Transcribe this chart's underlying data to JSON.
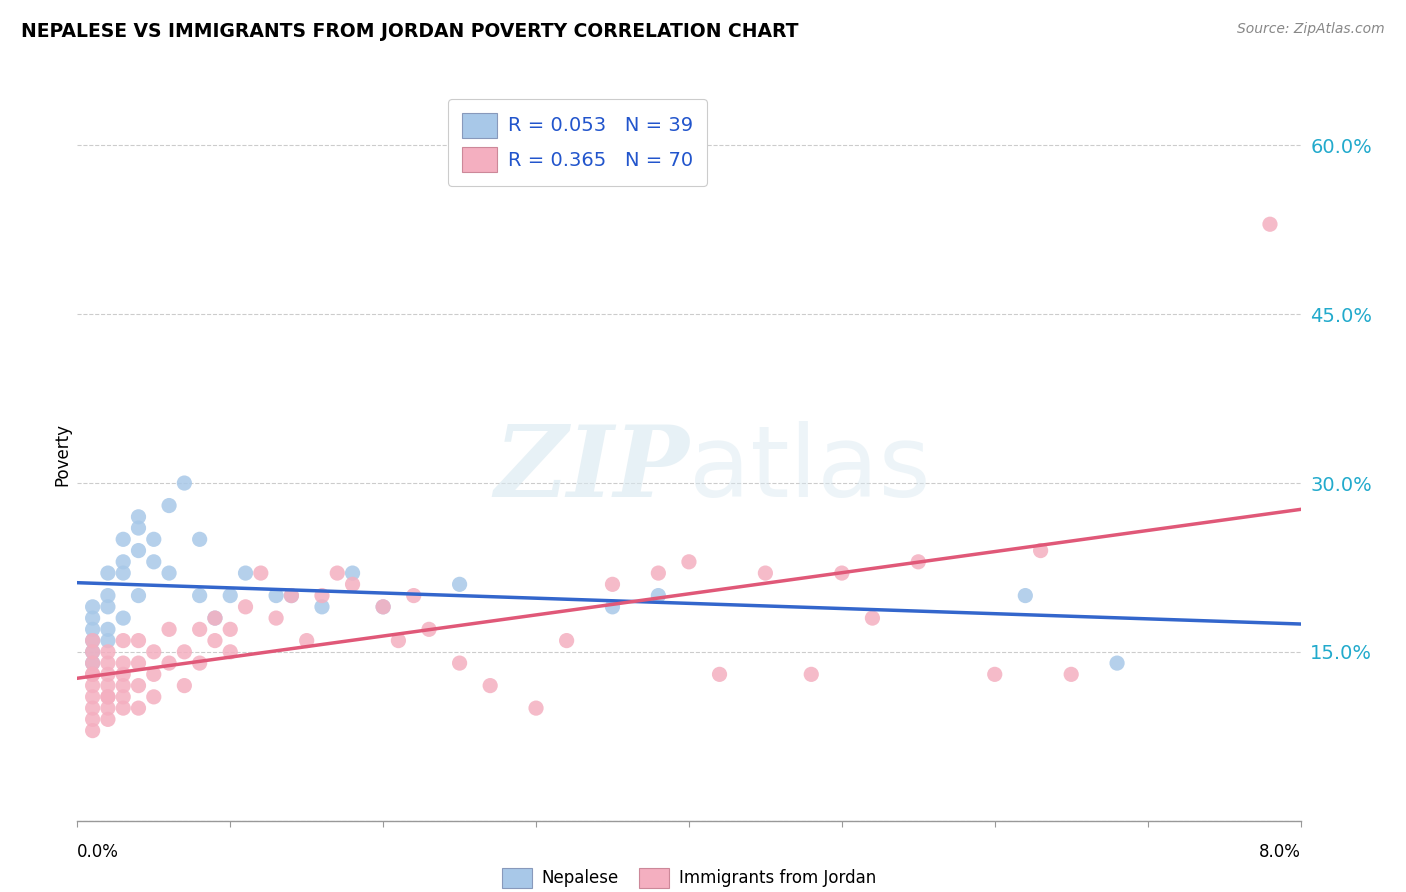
{
  "title": "NEPALESE VS IMMIGRANTS FROM JORDAN POVERTY CORRELATION CHART",
  "source": "Source: ZipAtlas.com",
  "ylabel": "Poverty",
  "xlim": [
    0.0,
    0.08
  ],
  "ylim": [
    0.0,
    0.65
  ],
  "yticks": [
    0.0,
    0.15,
    0.3,
    0.45,
    0.6
  ],
  "ytick_labels": [
    "",
    "15.0%",
    "30.0%",
    "45.0%",
    "60.0%"
  ],
  "nepalese_marker_color": "#a8c8e8",
  "jordan_marker_color": "#f4afc0",
  "nepalese_line_color": "#3366cc",
  "jordan_line_color": "#e05878",
  "R1": 0.053,
  "N1": 39,
  "R2": 0.365,
  "N2": 70,
  "background_color": "#ffffff",
  "grid_color": "#cccccc",
  "nepalese_x": [
    0.001,
    0.001,
    0.001,
    0.001,
    0.001,
    0.001,
    0.002,
    0.002,
    0.002,
    0.002,
    0.002,
    0.003,
    0.003,
    0.003,
    0.003,
    0.004,
    0.004,
    0.004,
    0.004,
    0.005,
    0.005,
    0.006,
    0.006,
    0.007,
    0.008,
    0.008,
    0.009,
    0.01,
    0.011,
    0.013,
    0.014,
    0.016,
    0.018,
    0.02,
    0.025,
    0.035,
    0.038,
    0.062,
    0.068
  ],
  "nepalese_y": [
    0.16,
    0.17,
    0.18,
    0.19,
    0.14,
    0.15,
    0.2,
    0.22,
    0.17,
    0.16,
    0.19,
    0.23,
    0.25,
    0.22,
    0.18,
    0.26,
    0.24,
    0.27,
    0.2,
    0.25,
    0.23,
    0.28,
    0.22,
    0.3,
    0.25,
    0.2,
    0.18,
    0.2,
    0.22,
    0.2,
    0.2,
    0.19,
    0.22,
    0.19,
    0.21,
    0.19,
    0.2,
    0.2,
    0.14
  ],
  "jordan_x": [
    0.001,
    0.001,
    0.001,
    0.001,
    0.001,
    0.001,
    0.001,
    0.001,
    0.001,
    0.001,
    0.002,
    0.002,
    0.002,
    0.002,
    0.002,
    0.002,
    0.002,
    0.002,
    0.003,
    0.003,
    0.003,
    0.003,
    0.003,
    0.003,
    0.004,
    0.004,
    0.004,
    0.004,
    0.005,
    0.005,
    0.005,
    0.006,
    0.006,
    0.007,
    0.007,
    0.008,
    0.008,
    0.009,
    0.009,
    0.01,
    0.01,
    0.011,
    0.012,
    0.013,
    0.014,
    0.015,
    0.016,
    0.017,
    0.018,
    0.02,
    0.021,
    0.022,
    0.023,
    0.025,
    0.027,
    0.03,
    0.032,
    0.035,
    0.038,
    0.04,
    0.042,
    0.045,
    0.048,
    0.05,
    0.052,
    0.055,
    0.06,
    0.063,
    0.065,
    0.078
  ],
  "jordan_y": [
    0.1,
    0.12,
    0.13,
    0.11,
    0.14,
    0.09,
    0.08,
    0.15,
    0.16,
    0.13,
    0.11,
    0.13,
    0.1,
    0.14,
    0.12,
    0.15,
    0.09,
    0.11,
    0.12,
    0.14,
    0.1,
    0.16,
    0.13,
    0.11,
    0.14,
    0.12,
    0.16,
    0.1,
    0.13,
    0.15,
    0.11,
    0.17,
    0.14,
    0.15,
    0.12,
    0.17,
    0.14,
    0.18,
    0.16,
    0.17,
    0.15,
    0.19,
    0.22,
    0.18,
    0.2,
    0.16,
    0.2,
    0.22,
    0.21,
    0.19,
    0.16,
    0.2,
    0.17,
    0.14,
    0.12,
    0.1,
    0.16,
    0.21,
    0.22,
    0.23,
    0.13,
    0.22,
    0.13,
    0.22,
    0.18,
    0.23,
    0.13,
    0.24,
    0.13,
    0.53
  ]
}
